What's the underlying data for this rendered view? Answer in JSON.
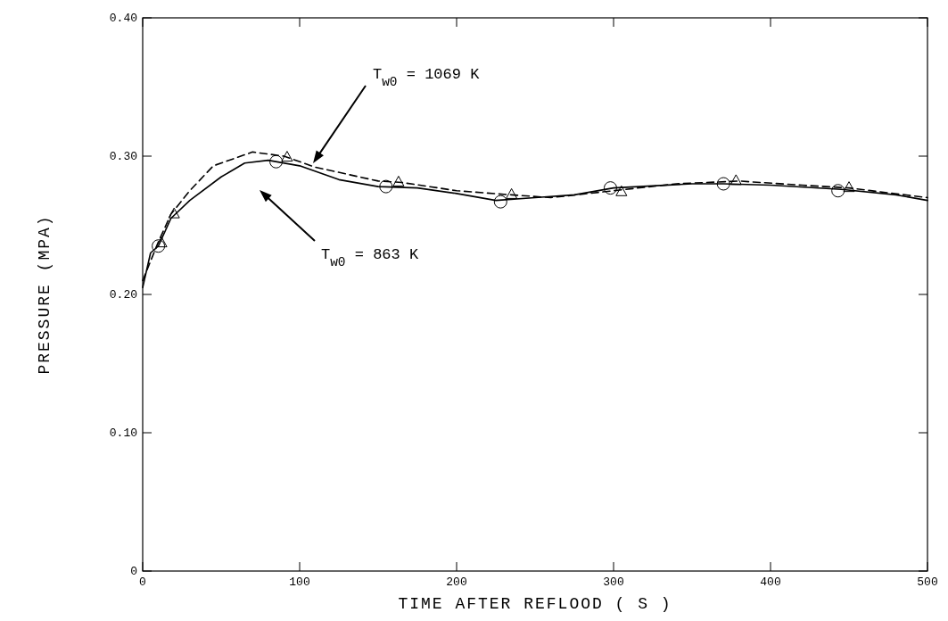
{
  "chart_data": {
    "type": "line",
    "xlabel": "TIME AFTER REFLOOD ( S )",
    "ylabel": "PRESSURE (MPA)",
    "xlim": [
      0,
      500
    ],
    "ylim": [
      0,
      0.4
    ],
    "xticks": [
      0,
      100,
      200,
      300,
      400,
      500
    ],
    "yticks": [
      0,
      {
        "value": 0.1,
        "label": "0.10"
      },
      {
        "value": 0.2,
        "label": "0.20"
      },
      {
        "value": 0.3,
        "label": "0.30"
      },
      {
        "value": 0.4,
        "label": "0.40"
      }
    ],
    "series": [
      {
        "line_style": "solid",
        "marker": "none",
        "color": "#000000",
        "x": [
          0,
          5,
          10,
          18,
          30,
          50,
          65,
          80,
          100,
          125,
          150,
          175,
          200,
          225,
          250,
          275,
          300,
          350,
          370,
          400,
          445,
          480,
          500
        ],
        "values": [
          0.205,
          0.23,
          0.235,
          0.255,
          0.268,
          0.285,
          0.295,
          0.297,
          0.293,
          0.283,
          0.278,
          0.277,
          0.273,
          0.268,
          0.27,
          0.272,
          0.277,
          0.28,
          0.28,
          0.279,
          0.276,
          0.272,
          0.268
        ]
      },
      {
        "line_style": "dashed",
        "marker": "none",
        "color": "#000000",
        "x": [
          0,
          10,
          18,
          30,
          45,
          70,
          90,
          110,
          150,
          165,
          200,
          235,
          260,
          300,
          340,
          380,
          420,
          450,
          500
        ],
        "values": [
          0.21,
          0.238,
          0.258,
          0.275,
          0.293,
          0.303,
          0.3,
          0.292,
          0.282,
          0.281,
          0.275,
          0.272,
          0.27,
          0.275,
          0.28,
          0.282,
          0.279,
          0.277,
          0.27
        ]
      },
      {
        "type": "scatter",
        "marker": "circle",
        "color": "#000000",
        "x": [
          10,
          85,
          155,
          228,
          298,
          370,
          443
        ],
        "values": [
          0.235,
          0.296,
          0.278,
          0.267,
          0.277,
          0.28,
          0.275
        ]
      },
      {
        "type": "scatter",
        "marker": "triangle",
        "color": "#000000",
        "x": [
          12,
          20,
          92,
          163,
          235,
          305,
          378,
          450
        ],
        "values": [
          0.237,
          0.258,
          0.299,
          0.281,
          0.272,
          0.274,
          0.282,
          0.277
        ]
      }
    ],
    "annotations": [
      "T$_{w0}$ = 1069 K",
      "T$_{w0}$ = 863 K"
    ]
  }
}
